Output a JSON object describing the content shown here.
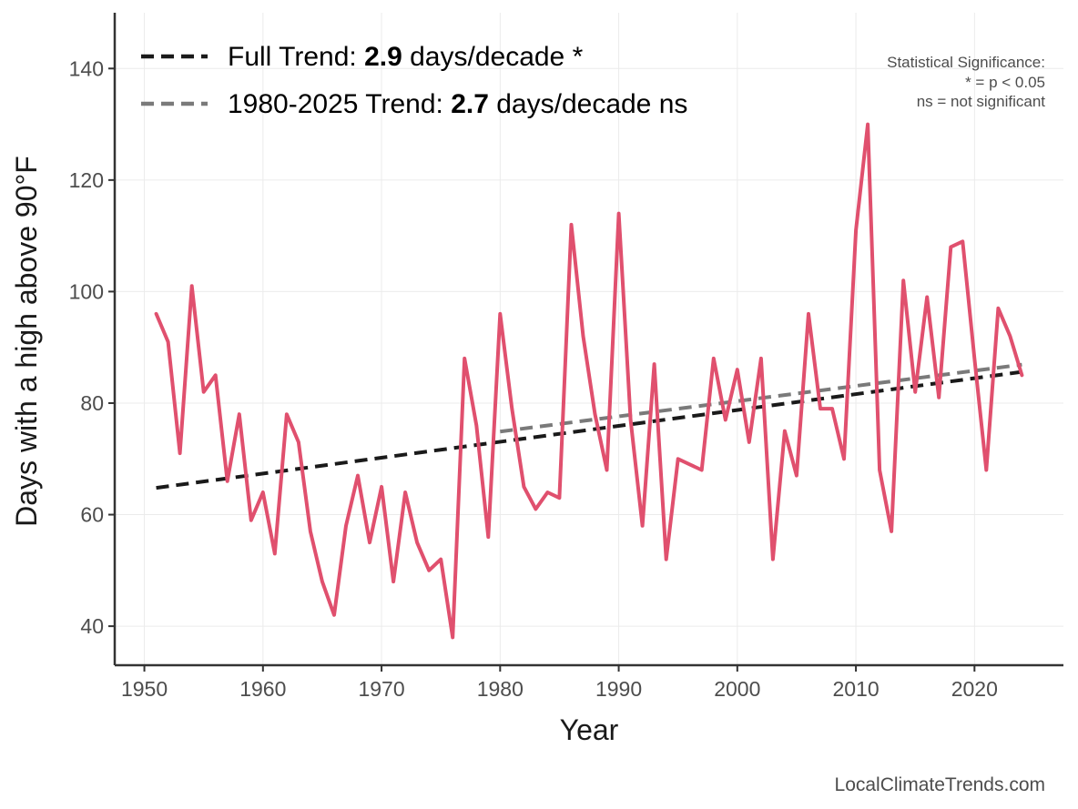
{
  "chart_data": {
    "type": "line",
    "xlabel": "Year",
    "ylabel": "Days with a high above 90°F",
    "xlim": [
      1947.5,
      2027.5
    ],
    "ylim": [
      33,
      150
    ],
    "x_ticks": [
      1950,
      1960,
      1970,
      1980,
      1990,
      2000,
      2010,
      2020
    ],
    "x_tick_labels": [
      "1950",
      "1960",
      "1970",
      "1980",
      "1990",
      "2000",
      "2010",
      "2020"
    ],
    "y_ticks": [
      40,
      60,
      80,
      100,
      120,
      140
    ],
    "y_tick_labels": [
      "40",
      "60",
      "80",
      "100",
      "120",
      "140"
    ],
    "grid": true,
    "series": [
      {
        "name": "Days above 90°F",
        "color": "#e0506e",
        "x": [
          1951,
          1952,
          1953,
          1954,
          1955,
          1956,
          1957,
          1958,
          1959,
          1960,
          1961,
          1962,
          1963,
          1964,
          1965,
          1966,
          1967,
          1968,
          1969,
          1970,
          1971,
          1972,
          1973,
          1974,
          1975,
          1976,
          1977,
          1978,
          1979,
          1980,
          1981,
          1982,
          1983,
          1984,
          1985,
          1986,
          1987,
          1988,
          1989,
          1990,
          1991,
          1992,
          1993,
          1994,
          1995,
          1996,
          1997,
          1998,
          1999,
          2000,
          2001,
          2002,
          2003,
          2004,
          2005,
          2006,
          2007,
          2008,
          2009,
          2010,
          2011,
          2012,
          2013,
          2014,
          2015,
          2016,
          2017,
          2018,
          2019,
          2020,
          2021,
          2022,
          2023,
          2024
        ],
        "values": [
          96,
          91,
          71,
          101,
          82,
          85,
          66,
          78,
          59,
          64,
          53,
          78,
          73,
          57,
          48,
          42,
          58,
          67,
          55,
          65,
          48,
          64,
          55,
          50,
          52,
          38,
          88,
          76,
          56,
          96,
          79,
          65,
          61,
          64,
          63,
          112,
          92,
          78,
          68,
          114,
          77,
          58,
          87,
          52,
          70,
          69,
          68,
          88,
          77,
          86,
          73,
          88,
          52,
          75,
          67,
          96,
          79,
          79,
          70,
          111,
          130,
          68,
          57,
          102,
          82,
          99,
          81,
          108,
          109,
          88,
          68,
          97,
          92,
          85
        ]
      }
    ],
    "trends": [
      {
        "name": "Full Trend",
        "color": "#1a1a1a",
        "dash": "dashed",
        "x": [
          1951,
          2024
        ],
        "values": [
          64.8,
          85.6
        ]
      },
      {
        "name": "1980-2025 Trend",
        "color": "#7a7a7a",
        "dash": "dashed",
        "x": [
          1980,
          2024
        ],
        "values": [
          74.9,
          86.9
        ]
      }
    ],
    "legend": {
      "placement": "top-left",
      "entries": [
        {
          "prefix": "Full Trend: ",
          "value": "2.9",
          "suffix": " days/decade *",
          "color": "#1a1a1a"
        },
        {
          "prefix": "1980-2025 Trend: ",
          "value": "2.7",
          "suffix": " days/decade ns",
          "color": "#7a7a7a"
        }
      ]
    },
    "annotation": {
      "placement": "top-right",
      "lines": [
        "Statistical Significance:",
        "* = p < 0.05",
        "ns = not significant"
      ]
    },
    "source": "LocalClimateTrends.com"
  }
}
